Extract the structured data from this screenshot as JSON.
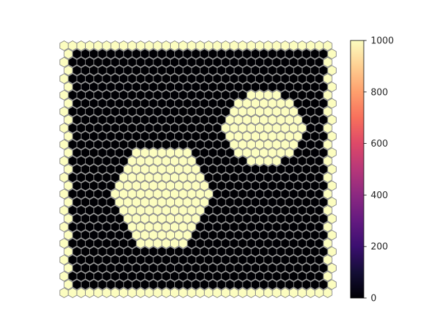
{
  "chart_data": {
    "type": "heatmap",
    "grid": "hexagonal",
    "title": "",
    "xlabel": "",
    "ylabel": "",
    "columns": 32,
    "rows": 31,
    "background_value": 0,
    "boundary_value": 1000,
    "regions": [
      {
        "shape": "hexagon",
        "value": 1000,
        "center_col": 11.5,
        "center_row": 18.5,
        "radius_cols": 6.2
      },
      {
        "shape": "hexagon",
        "value": 1000,
        "center_col": 23.5,
        "center_row": 10.0,
        "radius_cols": 4.7
      }
    ],
    "colorbar": {
      "colormap": "magma",
      "vmin": 0,
      "vmax": 1000,
      "ticks": [
        0,
        200,
        400,
        600,
        800,
        1000
      ],
      "tick_labels": [
        "0",
        "200",
        "400",
        "600",
        "800",
        "1000"
      ]
    },
    "colors": {
      "low": "#000004",
      "high": "#fcfdbf",
      "cell_edge": "#808080",
      "frame": "#000000"
    }
  }
}
